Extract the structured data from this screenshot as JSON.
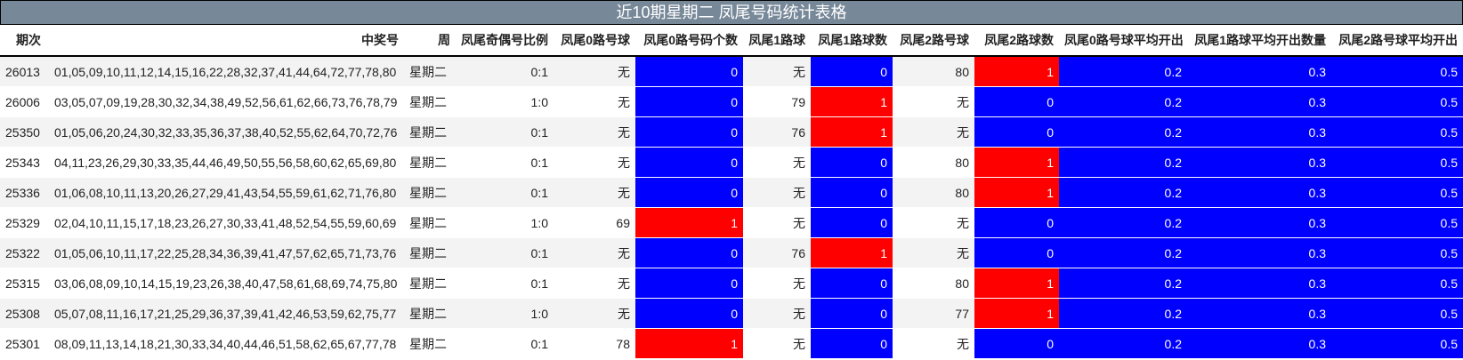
{
  "title": "近10期星期二 凤尾号码统计表格",
  "colors": {
    "zero": "#0000ff",
    "one": "#ff0000",
    "header_bar": "#778899",
    "stripe": "#f3f3f3"
  },
  "headers": [
    "期次",
    "中奖号",
    "周",
    "凤尾奇偶号比例",
    "凤尾0路号球",
    "凤尾0路号码个数",
    "凤尾1路球",
    "凤尾1路球数",
    "凤尾2路号球",
    "凤尾2路球数",
    "凤尾0路号球平均开出",
    "凤尾1路球平均开出数量",
    "凤尾2路号球平均开出"
  ],
  "rows": [
    [
      "26013",
      "01,05,09,10,11,12,14,15,16,22,28,32,37,41,44,64,72,77,78,80",
      "星期二",
      "0:1",
      "无",
      "0",
      "无",
      "0",
      "80",
      "1",
      "0.2",
      "0.3",
      "0.5"
    ],
    [
      "26006",
      "03,05,07,09,19,28,30,32,34,38,49,52,56,61,62,66,73,76,78,79",
      "星期二",
      "1:0",
      "无",
      "0",
      "79",
      "1",
      "无",
      "0",
      "0.2",
      "0.3",
      "0.5"
    ],
    [
      "25350",
      "01,05,06,20,24,30,32,33,35,36,37,38,40,52,55,62,64,70,72,76",
      "星期二",
      "0:1",
      "无",
      "0",
      "76",
      "1",
      "无",
      "0",
      "0.2",
      "0.3",
      "0.5"
    ],
    [
      "25343",
      "04,11,23,26,29,30,33,35,44,46,49,50,55,56,58,60,62,65,69,80",
      "星期二",
      "0:1",
      "无",
      "0",
      "无",
      "0",
      "80",
      "1",
      "0.2",
      "0.3",
      "0.5"
    ],
    [
      "25336",
      "01,06,08,10,11,13,20,26,27,29,41,43,54,55,59,61,62,71,76,80",
      "星期二",
      "0:1",
      "无",
      "0",
      "无",
      "0",
      "80",
      "1",
      "0.2",
      "0.3",
      "0.5"
    ],
    [
      "25329",
      "02,04,10,11,15,17,18,23,26,27,30,33,41,48,52,54,55,59,60,69",
      "星期二",
      "1:0",
      "69",
      "1",
      "无",
      "0",
      "无",
      "0",
      "0.2",
      "0.3",
      "0.5"
    ],
    [
      "25322",
      "01,05,06,10,11,17,22,25,28,34,36,39,41,47,57,62,65,71,73,76",
      "星期二",
      "0:1",
      "无",
      "0",
      "76",
      "1",
      "无",
      "0",
      "0.2",
      "0.3",
      "0.5"
    ],
    [
      "25315",
      "03,06,08,09,10,14,15,19,23,26,38,40,47,58,61,68,69,74,75,80",
      "星期二",
      "0:1",
      "无",
      "0",
      "无",
      "0",
      "80",
      "1",
      "0.2",
      "0.3",
      "0.5"
    ],
    [
      "25308",
      "05,07,08,11,16,17,21,25,29,36,37,39,41,42,46,53,59,62,75,77",
      "星期二",
      "1:0",
      "无",
      "0",
      "无",
      "0",
      "77",
      "1",
      "0.2",
      "0.3",
      "0.5"
    ],
    [
      "25301",
      "08,09,11,13,14,18,21,30,33,34,40,44,46,51,58,62,65,67,77,78",
      "星期二",
      "0:1",
      "78",
      "1",
      "无",
      "0",
      "无",
      "0",
      "0.2",
      "0.3",
      "0.5"
    ]
  ]
}
